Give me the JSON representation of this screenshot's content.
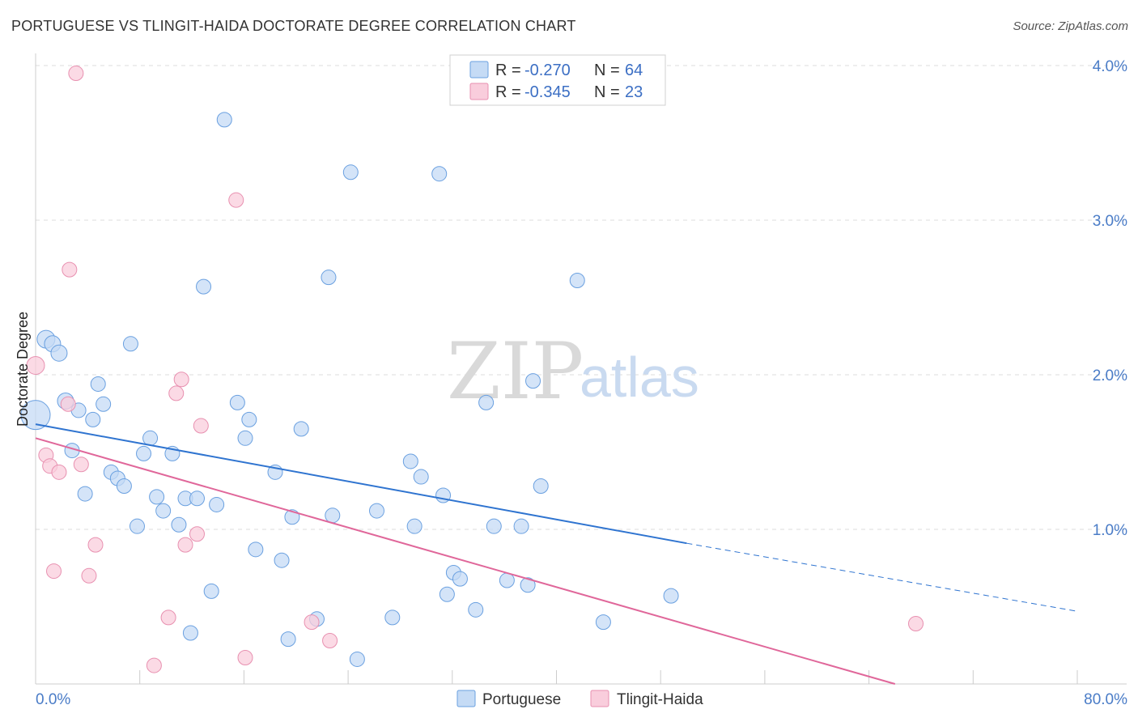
{
  "title": "PORTUGUESE VS TLINGIT-HAIDA DOCTORATE DEGREE CORRELATION CHART",
  "source": "Source: ZipAtlas.com",
  "watermark": {
    "zip": "ZIP",
    "atlas": "atlas"
  },
  "colors": {
    "portuguese": "#6aa0e0",
    "portuguese_fill": "#c5dbf5",
    "portuguese_line": "#2f74d0",
    "tlingit": "#e890b0",
    "tlingit_fill": "#f9cddc",
    "tlingit_line": "#e0679a",
    "grid": "#dddddd",
    "axis": "#cccccc"
  },
  "legend": {
    "r_label": "R =",
    "n_label": "N =",
    "rows": [
      {
        "r": "-0.270",
        "n": "64"
      },
      {
        "r": "-0.345",
        "n": "23"
      }
    ]
  },
  "chart_data": {
    "type": "scatter",
    "ylabel": "Doctorate Degree",
    "xlim": [
      0,
      80
    ],
    "ylim": [
      0,
      4.2
    ],
    "x_tick_labels": [
      "0.0%",
      "80.0%"
    ],
    "y_ticks": [
      1.0,
      2.0,
      3.0,
      4.0
    ],
    "y_tick_labels": [
      "1.0%",
      "2.0%",
      "3.0%",
      "4.0%"
    ],
    "grid": true,
    "legend_position": "top-center",
    "series": [
      {
        "name": "Portuguese",
        "trend": {
          "x": [
            0,
            50
          ],
          "y": [
            1.68,
            0.91
          ],
          "dashed_to": [
            80,
            0.47
          ]
        },
        "points": [
          [
            0,
            1.74,
            18
          ],
          [
            0.8,
            2.23,
            11
          ],
          [
            1.3,
            2.2,
            10
          ],
          [
            1.8,
            2.14,
            10
          ],
          [
            2.3,
            1.83,
            10
          ],
          [
            2.8,
            1.51,
            9
          ],
          [
            3.3,
            1.77,
            9
          ],
          [
            3.8,
            1.23,
            9
          ],
          [
            4.4,
            1.71,
            9
          ],
          [
            4.8,
            1.94,
            9
          ],
          [
            5.2,
            1.81,
            9
          ],
          [
            5.8,
            1.37,
            9
          ],
          [
            6.3,
            1.33,
            9
          ],
          [
            6.8,
            1.28,
            9
          ],
          [
            7.3,
            2.2,
            9
          ],
          [
            7.8,
            1.02,
            9
          ],
          [
            8.3,
            1.49,
            9
          ],
          [
            8.8,
            1.59,
            9
          ],
          [
            9.3,
            1.21,
            9
          ],
          [
            9.8,
            1.12,
            9
          ],
          [
            10.5,
            1.49,
            9
          ],
          [
            11,
            1.03,
            9
          ],
          [
            11.5,
            1.2,
            9
          ],
          [
            11.9,
            0.33,
            9
          ],
          [
            12.4,
            1.2,
            9
          ],
          [
            12.9,
            2.57,
            9
          ],
          [
            13.5,
            0.6,
            9
          ],
          [
            13.9,
            1.16,
            9
          ],
          [
            14.5,
            3.65,
            9
          ],
          [
            15.5,
            1.82,
            9
          ],
          [
            16.1,
            1.59,
            9
          ],
          [
            16.4,
            1.71,
            9
          ],
          [
            16.9,
            0.87,
            9
          ],
          [
            18.4,
            1.37,
            9
          ],
          [
            18.9,
            0.8,
            9
          ],
          [
            19.4,
            0.29,
            9
          ],
          [
            19.7,
            1.08,
            9
          ],
          [
            20.4,
            1.65,
            9
          ],
          [
            21.6,
            0.42,
            9
          ],
          [
            22.5,
            2.63,
            9
          ],
          [
            22.8,
            1.09,
            9
          ],
          [
            24.2,
            3.31,
            9
          ],
          [
            24.7,
            0.16,
            9
          ],
          [
            26.2,
            1.12,
            9
          ],
          [
            27.4,
            0.43,
            9
          ],
          [
            28.8,
            1.44,
            9
          ],
          [
            29.1,
            1.02,
            9
          ],
          [
            29.6,
            1.34,
            9
          ],
          [
            31,
            3.3,
            9
          ],
          [
            31.3,
            1.22,
            9
          ],
          [
            31.6,
            0.58,
            9
          ],
          [
            32.1,
            0.72,
            9
          ],
          [
            32.6,
            0.68,
            9
          ],
          [
            33.8,
            0.48,
            9
          ],
          [
            34.6,
            1.82,
            9
          ],
          [
            35.2,
            1.02,
            9
          ],
          [
            36.2,
            0.67,
            9
          ],
          [
            37.3,
            1.02,
            9
          ],
          [
            37.8,
            0.64,
            9
          ],
          [
            38.2,
            1.96,
            9
          ],
          [
            38.8,
            1.28,
            9
          ],
          [
            41.6,
            2.61,
            9
          ],
          [
            43.6,
            0.4,
            9
          ],
          [
            48.8,
            0.57,
            9
          ]
        ]
      },
      {
        "name": "Tlingit-Haida",
        "trend": {
          "x": [
            0,
            66
          ],
          "y": [
            1.59,
            0
          ]
        },
        "points": [
          [
            0,
            2.06,
            11
          ],
          [
            0.8,
            1.48,
            9
          ],
          [
            1.1,
            1.41,
            9
          ],
          [
            1.4,
            0.73,
            9
          ],
          [
            1.8,
            1.37,
            9
          ],
          [
            2.5,
            1.81,
            9
          ],
          [
            2.6,
            2.68,
            9
          ],
          [
            3.1,
            3.95,
            9
          ],
          [
            3.5,
            1.42,
            9
          ],
          [
            4.1,
            0.7,
            9
          ],
          [
            4.6,
            0.9,
            9
          ],
          [
            9.1,
            0.12,
            9
          ],
          [
            10.2,
            0.43,
            9
          ],
          [
            10.8,
            1.88,
            9
          ],
          [
            11.2,
            1.97,
            9
          ],
          [
            11.5,
            0.9,
            9
          ],
          [
            12.4,
            0.97,
            9
          ],
          [
            12.7,
            1.67,
            9
          ],
          [
            15.4,
            3.13,
            9
          ],
          [
            16.1,
            0.17,
            9
          ],
          [
            21.2,
            0.4,
            9
          ],
          [
            22.6,
            0.28,
            9
          ],
          [
            67.6,
            0.39,
            9
          ]
        ]
      }
    ]
  }
}
